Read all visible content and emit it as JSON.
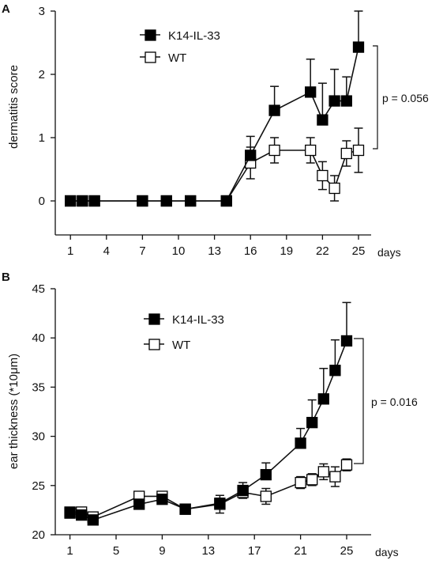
{
  "chart_data": [
    {
      "panel_label": "A",
      "type": "line",
      "xlabel": "days",
      "ylabel": "dermatitis score",
      "xlim": [
        0,
        27
      ],
      "ylim": [
        0,
        3
      ],
      "x_ticks": [
        "1",
        "4",
        "7",
        "10",
        "13",
        "16",
        "19",
        "22",
        "25"
      ],
      "y_ticks": [
        "0",
        "1",
        "2",
        "3"
      ],
      "legend_placement": "top-left",
      "series": [
        {
          "name": "K14-IL-33",
          "marker": "filled-square",
          "x": [
            1,
            2,
            3,
            7,
            9,
            11,
            14,
            16,
            18,
            21,
            22,
            23,
            24,
            25
          ],
          "y": [
            0,
            0,
            0,
            0,
            0,
            0,
            0,
            0.72,
            1.43,
            1.72,
            1.28,
            1.58,
            1.58,
            2.43
          ],
          "err": [
            0,
            0,
            0,
            0,
            0,
            0,
            0,
            0.3,
            0.38,
            0.52,
            0.58,
            0.5,
            0.38,
            0.57
          ]
        },
        {
          "name": "WT",
          "marker": "open-square",
          "x": [
            1,
            2,
            3,
            7,
            9,
            11,
            14,
            16,
            18,
            21,
            22,
            23,
            24,
            25
          ],
          "y": [
            0,
            0,
            0,
            0,
            0,
            0,
            0,
            0.6,
            0.8,
            0.8,
            0.4,
            0.2,
            0.75,
            0.8
          ],
          "err": [
            0,
            0,
            0,
            0,
            0,
            0,
            0,
            0.25,
            0.2,
            0.2,
            0.22,
            0.2,
            0.2,
            0.35
          ]
        }
      ],
      "annotation": {
        "text": "p = 0.056",
        "bracket_from": 0.8,
        "bracket_to": 2.43
      }
    },
    {
      "panel_label": "B",
      "type": "line",
      "xlabel": "days",
      "ylabel": "ear thickness (*10μm)",
      "xlim": [
        0,
        27
      ],
      "ylim": [
        20,
        45
      ],
      "x_ticks": [
        "1",
        "5",
        "9",
        "13",
        "17",
        "21",
        "25"
      ],
      "y_ticks": [
        "20",
        "25",
        "30",
        "35",
        "40",
        "45"
      ],
      "legend_placement": "top-left",
      "series": [
        {
          "name": "K14-IL-33",
          "marker": "filled-square",
          "x": [
            1,
            2,
            3,
            7,
            9,
            11,
            14,
            16,
            18,
            21,
            22,
            23,
            24,
            25
          ],
          "y": [
            22.2,
            22.0,
            21.5,
            23.1,
            23.6,
            22.6,
            23.2,
            24.5,
            26.1,
            29.3,
            31.4,
            33.8,
            36.7,
            39.7
          ],
          "err": [
            0.3,
            0.3,
            0.3,
            0.4,
            0.4,
            0.4,
            0.5,
            0.8,
            1.2,
            1.5,
            2.3,
            3.1,
            3.1,
            3.9
          ]
        },
        {
          "name": "WT",
          "marker": "open-square",
          "x": [
            1,
            2,
            3,
            7,
            9,
            11,
            14,
            16,
            18,
            21,
            22,
            23,
            24,
            25
          ],
          "y": [
            22.3,
            22.3,
            21.8,
            23.9,
            23.9,
            22.6,
            23.1,
            24.3,
            23.9,
            25.3,
            25.6,
            26.4,
            25.9,
            27.1
          ],
          "err": [
            0.3,
            0.3,
            0.3,
            0.4,
            0.4,
            0.4,
            0.9,
            0.6,
            0.8,
            0.6,
            0.6,
            0.8,
            1.0,
            0.6
          ]
        }
      ],
      "annotation": {
        "text": "p = 0.016",
        "bracket_from": 27.1,
        "bracket_to": 39.7
      }
    }
  ],
  "colors": {
    "axis": "#111111",
    "filled_marker": "#000000",
    "open_marker_fill": "#ffffff"
  }
}
